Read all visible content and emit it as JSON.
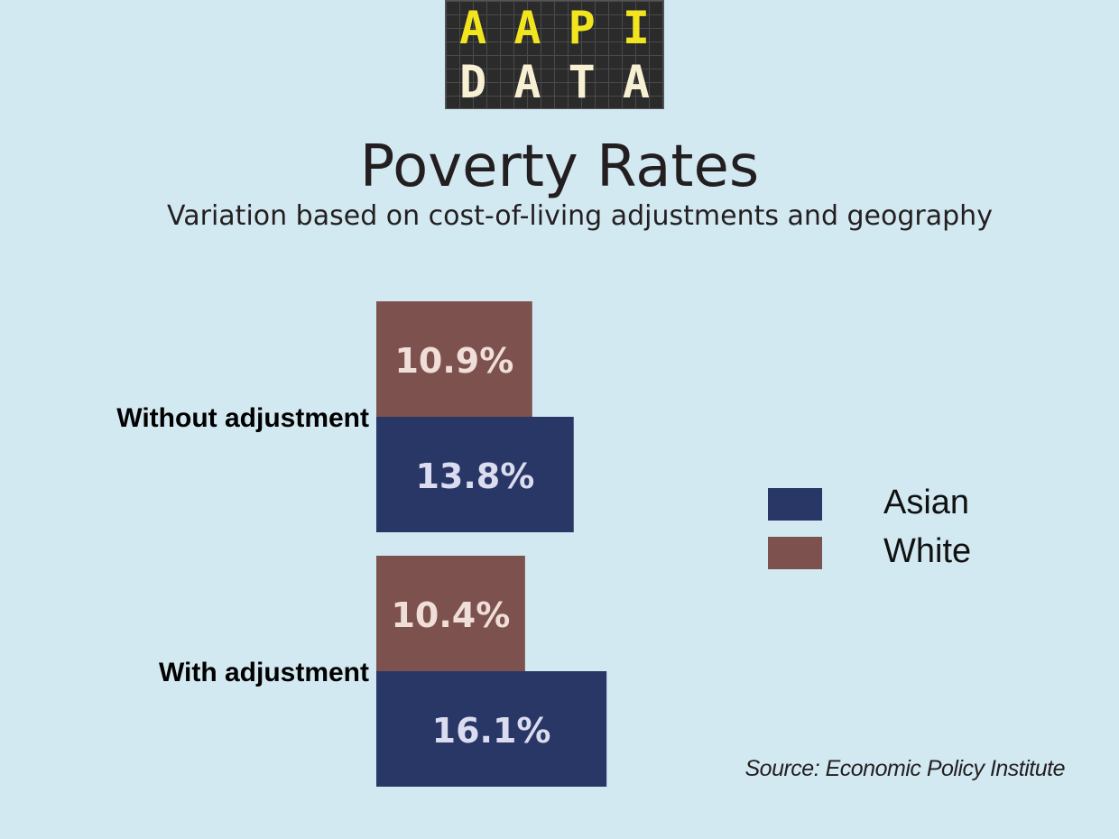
{
  "logo": {
    "row1": [
      "A",
      "A",
      "P",
      "I"
    ],
    "row2": [
      "D",
      "A",
      "T",
      "A"
    ]
  },
  "header": {
    "title": "Poverty Rates",
    "subtitle": "Variation based on cost-of-living adjustments and geography"
  },
  "source": "Source: Economic Policy Institute",
  "colors": {
    "asian": "#283766",
    "white": "#7d524e",
    "background": "#d3e9f2"
  },
  "chart_data": {
    "type": "bar",
    "orientation": "horizontal",
    "categories": [
      "Without adjustment",
      "With adjustment"
    ],
    "series": [
      {
        "name": "White",
        "values": [
          10.9,
          10.4
        ],
        "labels": [
          "10.9%",
          "10.4%"
        ],
        "color": "#7d524e"
      },
      {
        "name": "Asian",
        "values": [
          13.8,
          16.1
        ],
        "labels": [
          "13.8%",
          "16.1%"
        ],
        "color": "#283766"
      }
    ],
    "legend": {
      "position": "right",
      "order": [
        "Asian",
        "White"
      ]
    },
    "grid": false,
    "title": "Poverty Rates",
    "subtitle": "Variation based on cost-of-living adjustments and geography"
  }
}
